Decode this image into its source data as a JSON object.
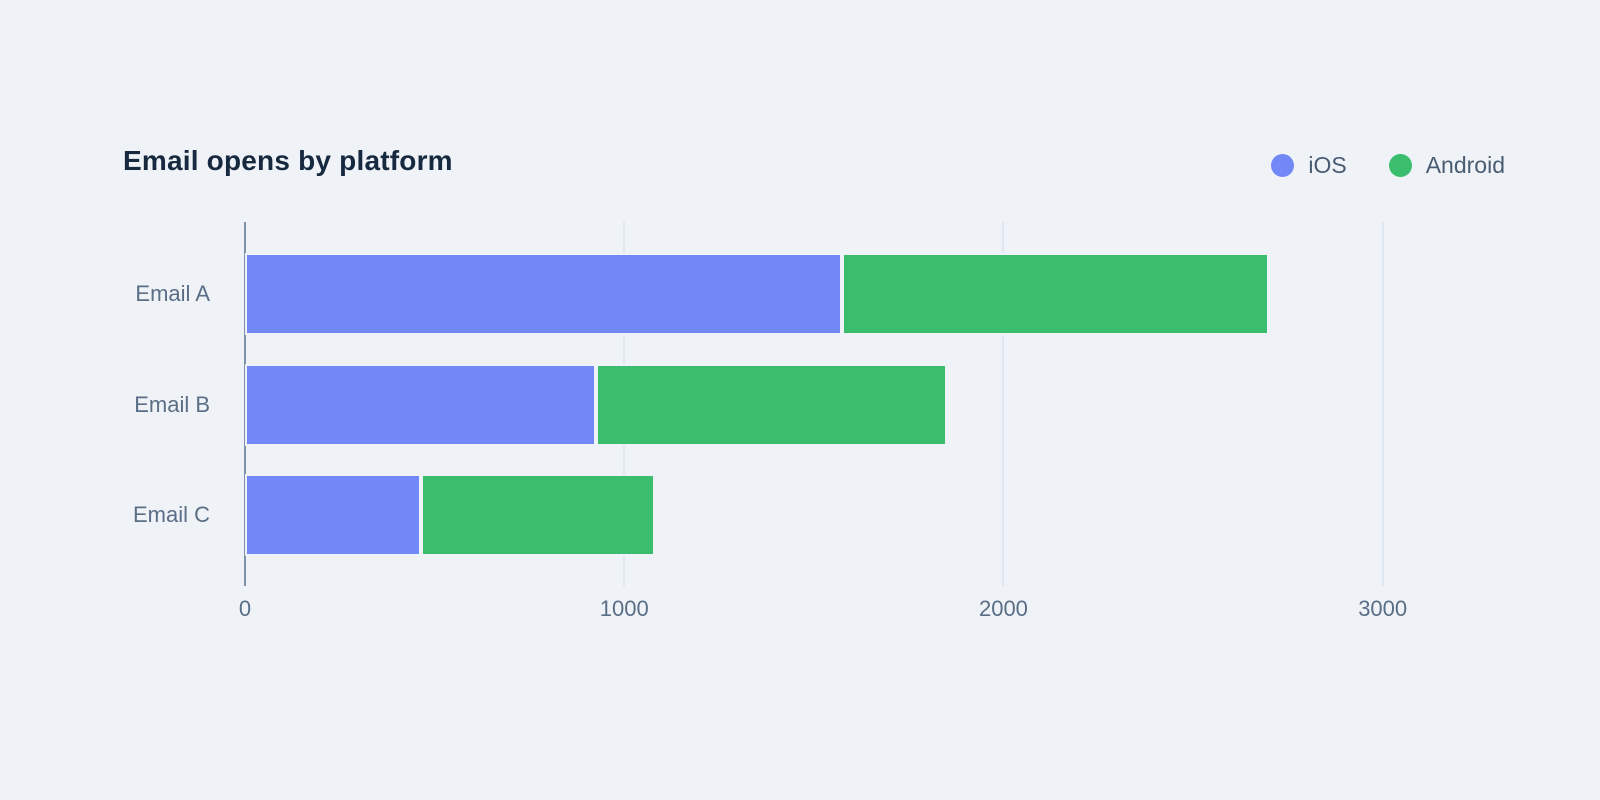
{
  "page": {
    "background_color": "#EFF3F8"
  },
  "chart_data": {
    "type": "bar",
    "orientation": "horizontal",
    "stacked": true,
    "title": "Email opens by platform",
    "xlabel": "",
    "ylabel": "",
    "categories": [
      "Email A",
      "Email B",
      "Email C"
    ],
    "series": [
      {
        "name": "iOS",
        "color": "#7388F7",
        "values": [
          1575,
          925,
          465
        ]
      },
      {
        "name": "Android",
        "color": "#3BBD6E",
        "values": [
          1125,
          925,
          615
        ]
      }
    ],
    "totals": [
      2700,
      1850,
      1080
    ],
    "xlim": [
      0,
      3312
    ],
    "xticks": [
      0,
      1000,
      2000,
      3000
    ],
    "grid": "vertical",
    "legend_position": "top-right",
    "axis_line_color": "#7E93A9",
    "gridline_color": "#DEE6EF",
    "label_color": "#5A6E86",
    "title_color": "#17293F"
  }
}
